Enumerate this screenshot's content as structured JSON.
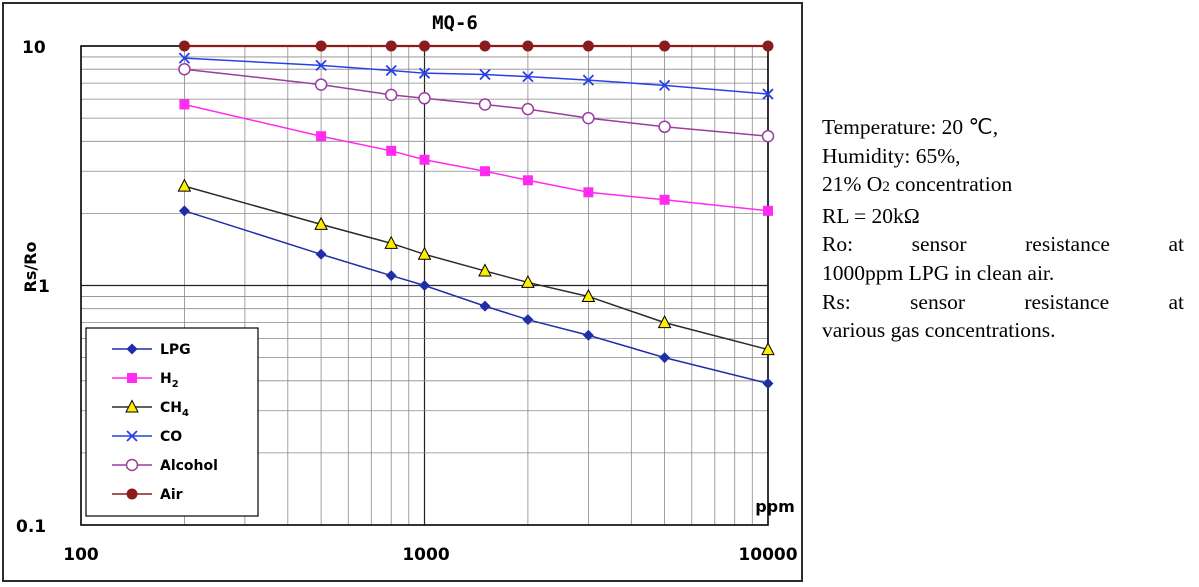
{
  "chart_data": {
    "type": "line",
    "title": "MQ-6",
    "xlabel": "ppm",
    "ylabel": "Rs/Ro",
    "x_scale": "log",
    "y_scale": "log",
    "xlim": [
      100,
      10000
    ],
    "ylim": [
      0.1,
      10
    ],
    "grid": true,
    "legend_position": "bottom-left",
    "x_tick_labels": [
      "100",
      "1000",
      "10000"
    ],
    "y_tick_labels": [
      "0.1",
      "1",
      "10"
    ],
    "x": [
      200,
      500,
      800,
      1000,
      1500,
      2000,
      3000,
      5000,
      10000
    ],
    "series": [
      {
        "name": "LPG",
        "sub": "",
        "color": "#1f2fa8",
        "marker": "diamond",
        "values": [
          2.05,
          1.35,
          1.1,
          1.0,
          0.82,
          0.72,
          0.62,
          0.5,
          0.39
        ]
      },
      {
        "name": "H",
        "sub": "2",
        "color": "#ff2bf0",
        "marker": "square",
        "values": [
          5.7,
          4.2,
          3.65,
          3.35,
          3.0,
          2.75,
          2.45,
          2.28,
          2.05
        ]
      },
      {
        "name": "CH",
        "sub": "4",
        "color": "#2b2b2b",
        "marker": "triangle",
        "values": [
          2.6,
          1.8,
          1.5,
          1.35,
          1.15,
          1.03,
          0.9,
          0.7,
          0.54
        ]
      },
      {
        "name": "CO",
        "sub": "",
        "color": "#2741e8",
        "marker": "x",
        "values": [
          8.9,
          8.3,
          7.9,
          7.7,
          7.6,
          7.45,
          7.2,
          6.85,
          6.3
        ]
      },
      {
        "name": "Alcohol",
        "sub": "",
        "color": "#9a3d9e",
        "marker": "circle-open",
        "values": [
          8.0,
          6.9,
          6.25,
          6.05,
          5.7,
          5.45,
          5.0,
          4.6,
          4.2
        ]
      },
      {
        "name": "Air",
        "sub": "",
        "color": "#8c1c1c",
        "marker": "circle-filled",
        "values": [
          10,
          10,
          10,
          10,
          10,
          10,
          10,
          10,
          10
        ]
      }
    ]
  },
  "notes": {
    "line1": "Temperature: 20 ℃,",
    "line2": "Humidity: 65%,",
    "line3_pre": "21% O",
    "line3_sub": "2",
    "line3_post": " concentration",
    "line4": "RL = 20kΩ",
    "line5": "Ro: sensor resistance at",
    "line6": "1000ppm LPG in clean air.",
    "line7": "Rs: sensor resistance at",
    "line8": "various gas concentrations."
  },
  "colors": {
    "frame": "#2b2b2b",
    "grid": "#8a8a8a",
    "plot_border": "#000000"
  }
}
